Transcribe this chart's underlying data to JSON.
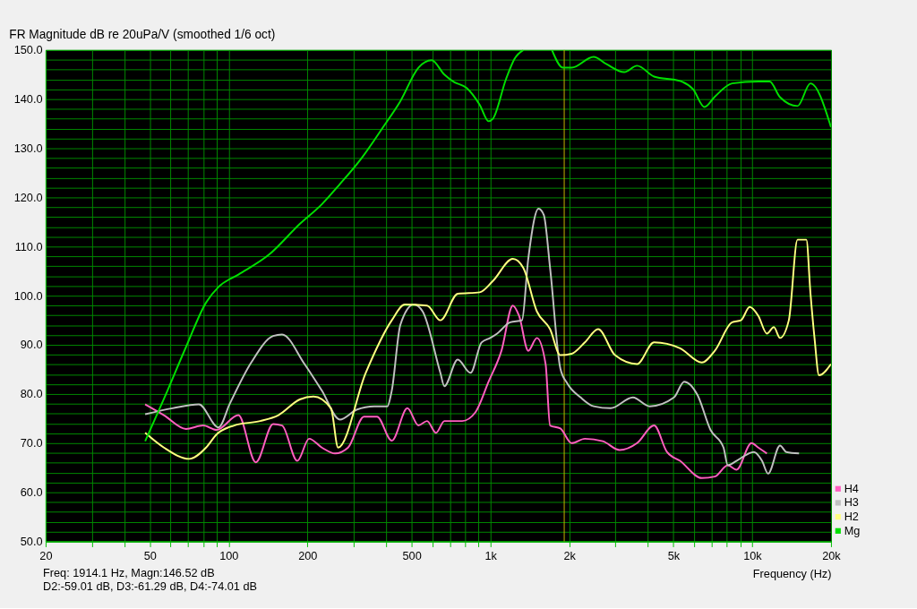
{
  "chart_data": {
    "type": "line",
    "title": "FR Magnitude dB re 20uPa/V (smoothed 1/6 oct)",
    "xlabel": "Frequency (Hz)",
    "log": "x",
    "grid": true,
    "legend": "bottom right",
    "line_style": "solid",
    "marker": "none",
    "xlim": [
      20,
      20000
    ],
    "xticks": [
      {
        "value": 20,
        "label": "20"
      },
      {
        "value": 30,
        "label": null
      },
      {
        "value": 40,
        "label": null
      },
      {
        "value": 50,
        "label": "50"
      },
      {
        "value": 60,
        "label": null
      },
      {
        "value": 70,
        "label": null
      },
      {
        "value": 80,
        "label": null
      },
      {
        "value": 90,
        "label": null
      },
      {
        "value": 100,
        "label": "100"
      },
      {
        "value": 200,
        "label": "200"
      },
      {
        "value": 300,
        "label": null
      },
      {
        "value": 400,
        "label": null
      },
      {
        "value": 500,
        "label": "500"
      },
      {
        "value": 600,
        "label": null
      },
      {
        "value": 700,
        "label": null
      },
      {
        "value": 800,
        "label": null
      },
      {
        "value": 900,
        "label": null
      },
      {
        "value": 1000,
        "label": "1k"
      },
      {
        "value": 2000,
        "label": "2k"
      },
      {
        "value": 3000,
        "label": null
      },
      {
        "value": 4000,
        "label": null
      },
      {
        "value": 5000,
        "label": "5k"
      },
      {
        "value": 6000,
        "label": null
      },
      {
        "value": 7000,
        "label": null
      },
      {
        "value": 8000,
        "label": null
      },
      {
        "value": 9000,
        "label": null
      },
      {
        "value": 10000,
        "label": "10k"
      },
      {
        "value": 20000,
        "label": "20k"
      }
    ],
    "ylim": [
      50,
      150
    ],
    "yticks": [
      {
        "value": 50,
        "label": "50.0"
      },
      {
        "value": 52,
        "label": null
      },
      {
        "value": 54,
        "label": null
      },
      {
        "value": 56,
        "label": null
      },
      {
        "value": 58,
        "label": null
      },
      {
        "value": 60,
        "label": "60.0"
      },
      {
        "value": 62,
        "label": null
      },
      {
        "value": 64,
        "label": null
      },
      {
        "value": 66,
        "label": null
      },
      {
        "value": 68,
        "label": null
      },
      {
        "value": 70,
        "label": "70.0"
      },
      {
        "value": 72,
        "label": null
      },
      {
        "value": 74,
        "label": null
      },
      {
        "value": 76,
        "label": null
      },
      {
        "value": 78,
        "label": null
      },
      {
        "value": 80,
        "label": "80.0"
      },
      {
        "value": 82,
        "label": null
      },
      {
        "value": 84,
        "label": null
      },
      {
        "value": 86,
        "label": null
      },
      {
        "value": 88,
        "label": null
      },
      {
        "value": 90,
        "label": "90.0"
      },
      {
        "value": 92,
        "label": null
      },
      {
        "value": 94,
        "label": null
      },
      {
        "value": 96,
        "label": null
      },
      {
        "value": 98,
        "label": null
      },
      {
        "value": 100,
        "label": "100.0"
      },
      {
        "value": 102,
        "label": null
      },
      {
        "value": 104,
        "label": null
      },
      {
        "value": 106,
        "label": null
      },
      {
        "value": 108,
        "label": null
      },
      {
        "value": 110,
        "label": "110.0"
      },
      {
        "value": 112,
        "label": null
      },
      {
        "value": 114,
        "label": null
      },
      {
        "value": 116,
        "label": null
      },
      {
        "value": 118,
        "label": null
      },
      {
        "value": 120,
        "label": "120.0"
      },
      {
        "value": 122,
        "label": null
      },
      {
        "value": 124,
        "label": null
      },
      {
        "value": 126,
        "label": null
      },
      {
        "value": 128,
        "label": null
      },
      {
        "value": 130,
        "label": "130.0"
      },
      {
        "value": 132,
        "label": null
      },
      {
        "value": 134,
        "label": null
      },
      {
        "value": 136,
        "label": null
      },
      {
        "value": 138,
        "label": null
      },
      {
        "value": 140,
        "label": "140.0"
      },
      {
        "value": 142,
        "label": null
      },
      {
        "value": 144,
        "label": null
      },
      {
        "value": 146,
        "label": null
      },
      {
        "value": 148,
        "label": null
      },
      {
        "value": 150,
        "label": "150.0"
      }
    ],
    "ref_lines": [
      {
        "axis": "x",
        "value": 1914.1,
        "color": "#c8b400",
        "line_style": "solid"
      }
    ],
    "annotations": [
      "Freq: 1914.1 Hz, Magn:146.52 dB",
      "D2:-59.01 dB, D3:-61.29 dB, D4:-74.01 dB"
    ],
    "series": [
      {
        "name": "H4",
        "color": "#ff5fbf",
        "x": [
          48,
          56.6,
          68.8,
          80,
          90,
          109,
          127,
          148,
          160,
          183,
          203,
          227,
          255,
          286,
          329,
          369,
          420,
          482,
          531,
          573,
          620,
          667,
          780,
          877,
          984,
          1102,
          1218,
          1287,
          1395,
          1505,
          1625,
          1690,
          1850,
          2044,
          2295,
          2685,
          3115,
          3632,
          4218,
          4725,
          5300,
          6421,
          7198,
          8070,
          8710,
          9940,
          10550,
          11380
        ],
        "values": [
          77.9,
          75.7,
          72.9,
          73.6,
          72.7,
          75.7,
          66.1,
          73.9,
          73.6,
          66.4,
          70.9,
          69.1,
          67.9,
          69.1,
          75.4,
          75.4,
          70.5,
          77.1,
          73.6,
          74.5,
          72.1,
          74.5,
          74.5,
          76.3,
          82.5,
          88.8,
          98,
          95.9,
          88.8,
          91.4,
          86.1,
          73.6,
          73,
          70,
          70.9,
          70.4,
          68.6,
          70,
          73.6,
          68.2,
          66.4,
          62.9,
          63.2,
          65.5,
          64.6,
          70,
          69.1,
          67.9
        ]
      },
      {
        "name": "H3",
        "color": "#c0c0c0",
        "x": [
          48,
          61,
          77,
          91.5,
          101,
          122,
          148,
          160,
          195,
          227,
          266,
          308,
          360,
          404,
          420,
          453,
          510,
          551,
          644,
          667,
          750,
          840,
          925,
          998,
          1061,
          1190,
          1320,
          1395,
          1528,
          1600,
          1690,
          1850,
          1970,
          2212,
          2480,
          2880,
          3500,
          4060,
          5025,
          5500,
          6180,
          6930,
          7770,
          8070,
          8710,
          10150,
          10900,
          11500,
          12770,
          13500,
          15100
        ],
        "values": [
          75.9,
          77.1,
          77.9,
          73.2,
          78,
          86.4,
          91.8,
          92.1,
          86.1,
          80.7,
          74.8,
          76.8,
          77.5,
          77.5,
          80.7,
          94.1,
          98.2,
          96.8,
          84.3,
          81.6,
          87,
          84.3,
          90.5,
          91.4,
          92.3,
          94.6,
          95,
          107.5,
          117.7,
          116.4,
          105.7,
          85.2,
          82.1,
          79.3,
          77.5,
          77.1,
          79.3,
          77.5,
          79.3,
          82.5,
          79.8,
          72.7,
          69.1,
          65.5,
          66.4,
          68.2,
          66.4,
          63.8,
          69.5,
          68.2,
          67.9
        ]
      },
      {
        "name": "H2",
        "color": "#ffff80",
        "x": [
          48,
          56.6,
          70.7,
          82,
          90,
          105,
          132,
          155,
          187,
          211,
          246,
          262,
          334,
          420,
          471,
          573,
          644,
          750,
          911,
          1022,
          1218,
          1335,
          1505,
          1690,
          1850,
          2044,
          2295,
          2580,
          2992,
          3632,
          4218,
          5300,
          6421,
          7198,
          8380,
          9060,
          9780,
          10553,
          11380,
          12100,
          12770,
          13800,
          14900,
          16100,
          16700,
          17300,
          18000,
          20000
        ],
        "values": [
          72.1,
          69.1,
          66.8,
          69.1,
          71.8,
          73.6,
          74.5,
          75.7,
          78.9,
          79.5,
          77.1,
          69.1,
          84.3,
          95,
          98.2,
          98,
          95,
          100.4,
          100.7,
          103,
          107.5,
          105.7,
          96.8,
          93.2,
          87.9,
          88.2,
          90.5,
          93.2,
          87.9,
          86.1,
          90.5,
          89.3,
          86.4,
          88.8,
          94.6,
          95,
          97.7,
          95.9,
          92.3,
          93.6,
          91.4,
          95,
          111.4,
          111.4,
          100.4,
          91.4,
          83.8,
          86.1
        ]
      },
      {
        "name": "Mg",
        "color": "#00e000",
        "x": [
          48,
          56.6,
          68.8,
          82,
          91.5,
          109,
          143,
          187,
          227,
          266,
          322,
          389,
          453,
          531,
          596,
          667,
          720,
          810,
          911,
          984,
          1022,
          1146,
          1236,
          1335,
          1500,
          1718,
          1895,
          2044,
          2478,
          2780,
          3245,
          3632,
          4218,
          5300,
          5946,
          6571,
          7198,
          8380,
          10553,
          11660,
          12770,
          14900,
          16700,
          20000
        ],
        "values": [
          70.4,
          79,
          89.6,
          98.6,
          101.8,
          104.3,
          108.4,
          114.6,
          118.6,
          122.7,
          128,
          134.3,
          139.6,
          146.4,
          147.9,
          145,
          143.6,
          142.3,
          138.8,
          135.5,
          136,
          144,
          148.2,
          150,
          null,
          150,
          146.4,
          146.4,
          148.6,
          147.1,
          145.5,
          146.8,
          144.6,
          143.7,
          142,
          138.4,
          140.5,
          143.2,
          143.6,
          143.6,
          140.4,
          138.6,
          143.2,
          134.3
        ]
      }
    ]
  }
}
